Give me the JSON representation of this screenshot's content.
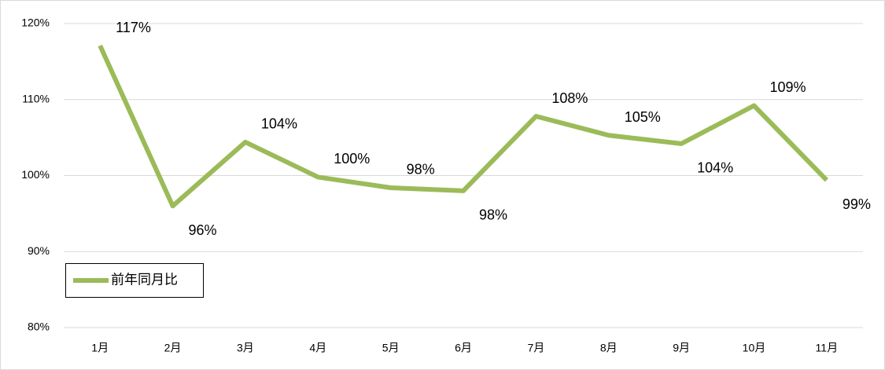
{
  "chart_data": {
    "type": "line",
    "categories": [
      "1月",
      "2月",
      "3月",
      "4月",
      "5月",
      "6月",
      "7月",
      "8月",
      "9月",
      "10月",
      "11月"
    ],
    "series": [
      {
        "name": "前年同月比",
        "color": "#9bbb59",
        "values": [
          117.1,
          96.0,
          104.4,
          99.8,
          98.4,
          98.0,
          107.8,
          105.3,
          104.2,
          109.2,
          99.4
        ],
        "value_labels": [
          "117%",
          "96%",
          "104%",
          "100%",
          "98%",
          "98%",
          "108%",
          "105%",
          "104%",
          "109%",
          "99%"
        ]
      }
    ],
    "ylim": [
      80,
      120
    ],
    "yticks": [
      {
        "value": 80,
        "label": "80%"
      },
      {
        "value": 90,
        "label": "90%"
      },
      {
        "value": 100,
        "label": "100%"
      },
      {
        "value": 110,
        "label": "110%"
      },
      {
        "value": 120,
        "label": "120%"
      }
    ],
    "grid": true,
    "legend": "lower-left"
  }
}
